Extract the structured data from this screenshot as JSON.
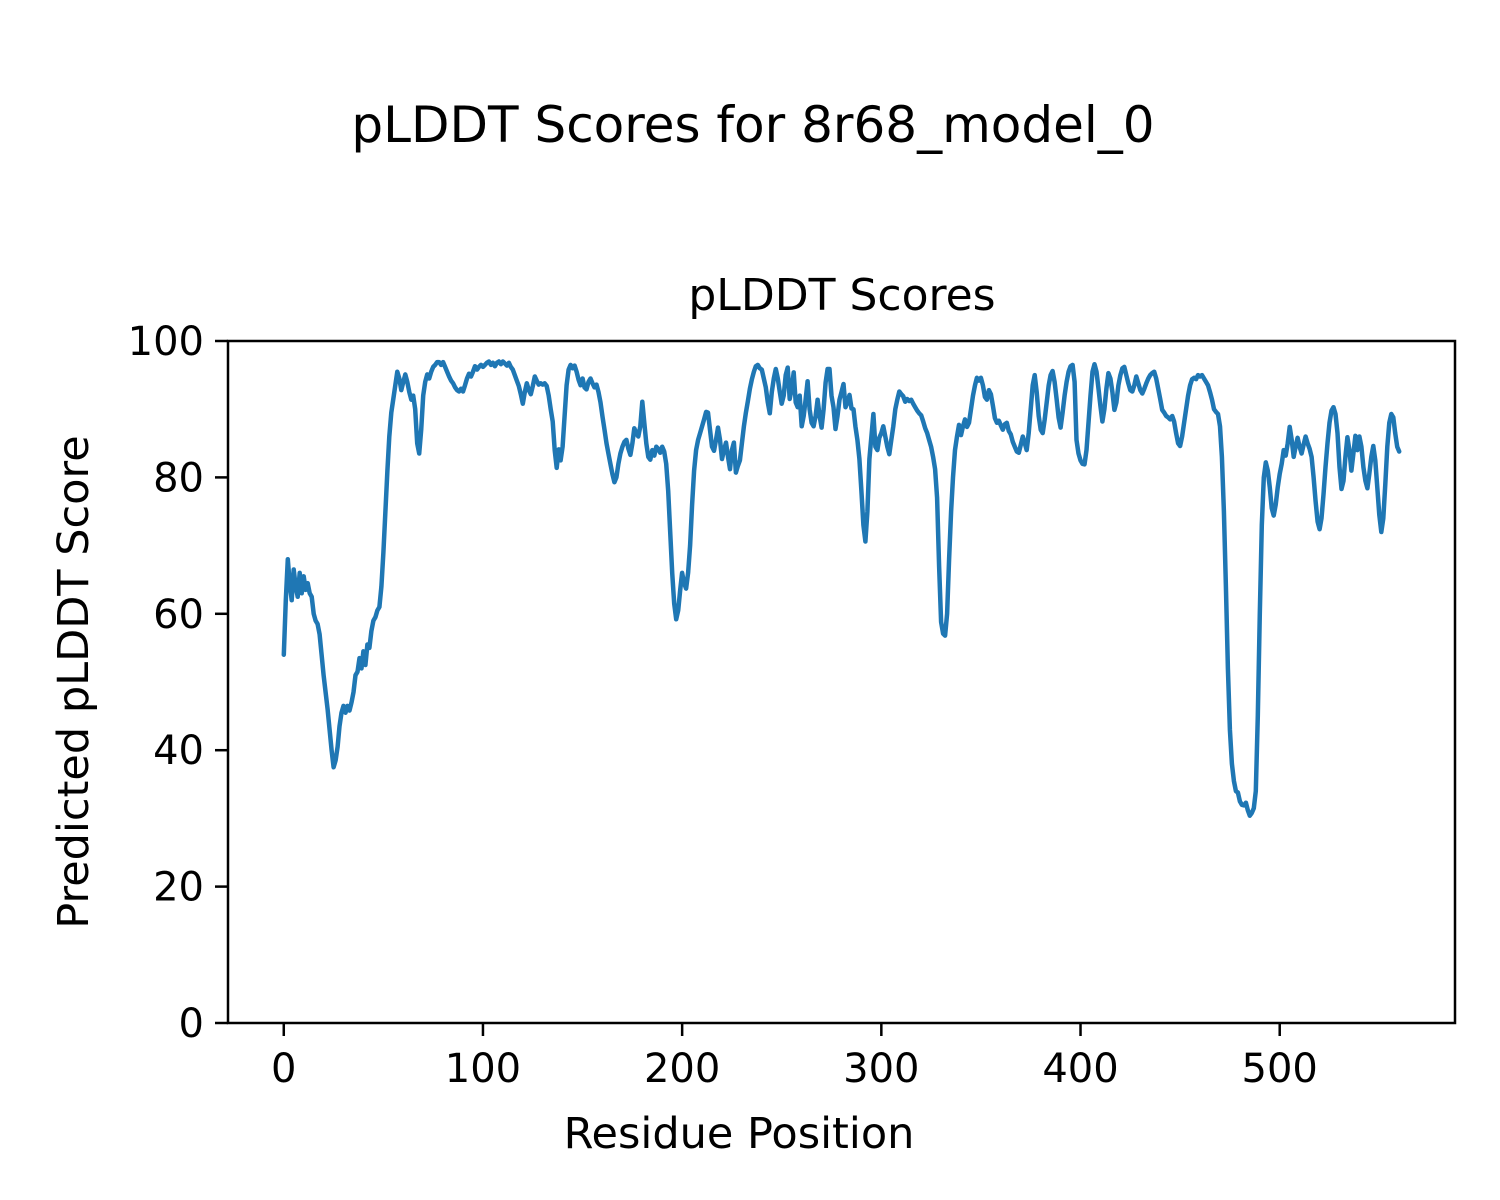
{
  "figure": {
    "suptitle": "pLDDT Scores for 8r68_model_0"
  },
  "chart_data": {
    "type": "line",
    "title": "pLDDT Scores",
    "xlabel": "Residue Position",
    "ylabel": "Predicted pLDDT Score",
    "x_ticks": [
      0,
      100,
      200,
      300,
      400,
      500
    ],
    "x_tick_labels": [
      "0",
      "100",
      "200",
      "300",
      "400",
      "500"
    ],
    "y_ticks": [
      0,
      20,
      40,
      60,
      80,
      100
    ],
    "y_tick_labels": [
      "0",
      "20",
      "40",
      "60",
      "80",
      "100"
    ],
    "xlim": [
      -28,
      588
    ],
    "ylim": [
      0,
      100
    ],
    "grid": false,
    "legend_position": "none",
    "line_color": "#1f77b4",
    "line_width": 4.5,
    "x_start": 0,
    "x_step": 1,
    "values": [
      54,
      62,
      68,
      64.5,
      62,
      66.5,
      64,
      62.5,
      66,
      63,
      65.5,
      63.5,
      64.5,
      63,
      62.5,
      60,
      59,
      58.5,
      57,
      54,
      51,
      48.5,
      46,
      43,
      40,
      37.5,
      38.5,
      40.5,
      43.5,
      45.5,
      46.5,
      45.5,
      46.5,
      45.8,
      47,
      48.5,
      51,
      51.5,
      53.5,
      52,
      54.5,
      52.5,
      55.5,
      55,
      57.5,
      59,
      59.5,
      60.5,
      61,
      64,
      69,
      75,
      81,
      86,
      89.5,
      91.5,
      93.5,
      95.5,
      94.5,
      92.8,
      94,
      95.1,
      94,
      92.5,
      91.4,
      92,
      90,
      85,
      83.5,
      87,
      92,
      94,
      95.1,
      94.5,
      95.5,
      96.2,
      96.5,
      96.9,
      96.9,
      96.5,
      96.9,
      96.2,
      95.5,
      94.8,
      94.2,
      93.8,
      93.2,
      92.8,
      92.6,
      93,
      92.6,
      93.5,
      94.5,
      95.2,
      94.8,
      95.5,
      96.3,
      95.8,
      96.2,
      96.5,
      96.2,
      96.5,
      96.8,
      97,
      96.5,
      96.8,
      96.3,
      96.8,
      97,
      96.6,
      97,
      96.7,
      96.4,
      96.8,
      96.2,
      95.8,
      95,
      94.2,
      93.4,
      92.2,
      90.8,
      92.5,
      93.8,
      92.8,
      92.2,
      93.4,
      94.8,
      94.2,
      93.6,
      93.8,
      93.6,
      93.8,
      93.4,
      92,
      90,
      88.2,
      84,
      81.4,
      84.1,
      82.5,
      84.5,
      89,
      93.5,
      95.8,
      96.5,
      96,
      96.4,
      95.5,
      94.3,
      93.5,
      94.5,
      93.2,
      92.9,
      94,
      94.5,
      93.8,
      93.2,
      93.6,
      92.5,
      91,
      88.9,
      87,
      85,
      83.5,
      82,
      80.5,
      79.3,
      80,
      82,
      83.5,
      84.5,
      85.2,
      85.5,
      84.2,
      83.3,
      85,
      87.2,
      86.5,
      86,
      87.5,
      91.1,
      88,
      85,
      83,
      82.6,
      84,
      83.2,
      84.5,
      84.2,
      83.6,
      84.5,
      83.8,
      82,
      78,
      72,
      66,
      61.5,
      59.2,
      60.5,
      63.5,
      66,
      64.5,
      63.7,
      66,
      70,
      76,
      81,
      84,
      85.5,
      86.5,
      87.5,
      88.5,
      89.6,
      89.5,
      87,
      84.5,
      83.9,
      85.5,
      87.3,
      85.5,
      82.7,
      84,
      85.1,
      83,
      81.2,
      84,
      85.1,
      80.7,
      81.7,
      82.5,
      85,
      87.5,
      89.5,
      91.2,
      93,
      94.4,
      95.5,
      96.3,
      96.5,
      96,
      95.8,
      94.5,
      93.2,
      91,
      89.4,
      92.5,
      94.5,
      95.9,
      94.5,
      92.5,
      90.8,
      92,
      95,
      96.1,
      91.5,
      93,
      95.4,
      91,
      90.3,
      92,
      87.5,
      89,
      91.4,
      94.1,
      90,
      88,
      87.5,
      89,
      91.4,
      89,
      87.3,
      90,
      93.9,
      95.9,
      95.9,
      92,
      90.3,
      87.1,
      89,
      91.4,
      92.5,
      93.7,
      90.3,
      91,
      92.1,
      90.1,
      90,
      87.5,
      85.5,
      82.7,
      78,
      73,
      70.6,
      75,
      82.7,
      86,
      89.3,
      84.5,
      84,
      85.8,
      86.5,
      87.5,
      86,
      84.5,
      83.4,
      85.5,
      87.5,
      90,
      91.4,
      92.6,
      92.2,
      91.9,
      91.1,
      91.5,
      91.2,
      91.4,
      90.8,
      90.3,
      89.8,
      89.4,
      89.1,
      88.2,
      87.2,
      86.5,
      85.5,
      84.5,
      83,
      81.2,
      77,
      67,
      58.8,
      57.1,
      56.8,
      60,
      68,
      75,
      80,
      84,
      86,
      87.7,
      86.2,
      87.5,
      88.5,
      87.4,
      88,
      90,
      92,
      93.5,
      94.6,
      94.2,
      94.6,
      93.5,
      91.8,
      91.4,
      92.8,
      92.2,
      90.5,
      88.7,
      88,
      88.3,
      87.6,
      87,
      87.8,
      88,
      86.8,
      86.3,
      85.2,
      84.5,
      83.8,
      83.6,
      84.8,
      86,
      85,
      84,
      86.5,
      90,
      93.5,
      95,
      92.5,
      89,
      87,
      86.5,
      88.5,
      91,
      93.5,
      95,
      95.6,
      94,
      91.5,
      88.8,
      87.3,
      89.5,
      92,
      94,
      95.5,
      96.3,
      96.5,
      94,
      85.5,
      83.5,
      82.5,
      82,
      81.9,
      84,
      88,
      92,
      95.5,
      96.6,
      95.5,
      93,
      90.5,
      88.2,
      90,
      93,
      95.3,
      94.5,
      92.5,
      89.9,
      91,
      93.5,
      95,
      96,
      96.2,
      95,
      93.8,
      92.8,
      92.6,
      93.5,
      94.8,
      93.8,
      92.8,
      92.3,
      93,
      93.8,
      94.5,
      95,
      95.3,
      95.5,
      94.5,
      93,
      91.5,
      89.9,
      89.5,
      89,
      88.8,
      88.5,
      89,
      88.2,
      86.5,
      85,
      84.6,
      86,
      88,
      90,
      92,
      93.5,
      94.4,
      94.6,
      94.4,
      95,
      94.8,
      95,
      94.5,
      94,
      93.5,
      92.5,
      91.4,
      90,
      89.6,
      89.3,
      87.5,
      83,
      75,
      64,
      52,
      43,
      38,
      35.5,
      34,
      33.8,
      32.5,
      32,
      31.9,
      32.3,
      31.2,
      30.4,
      30.8,
      31.5,
      34,
      45,
      60,
      73,
      80,
      82.2,
      81,
      78.5,
      75.5,
      74.4,
      76,
      78.5,
      80.5,
      82,
      84,
      83.2,
      85,
      87.4,
      85.5,
      83,
      84.5,
      85.8,
      84.5,
      83.5,
      84.8,
      86,
      85,
      84.2,
      83,
      80,
      76.5,
      73.5,
      72.4,
      74,
      77.5,
      81.5,
      85,
      88,
      89.8,
      90.3,
      89.3,
      86.5,
      81.5,
      78.3,
      79.5,
      83,
      85.9,
      84,
      81,
      83.5,
      86.1,
      84,
      86,
      84.5,
      81.5,
      79.5,
      78.4,
      80.5,
      83,
      84.6,
      82.5,
      78.5,
      74.5,
      72,
      74,
      79,
      84.5,
      88,
      89.3,
      88.8,
      86.5,
      84.5,
      83.8
    ]
  }
}
